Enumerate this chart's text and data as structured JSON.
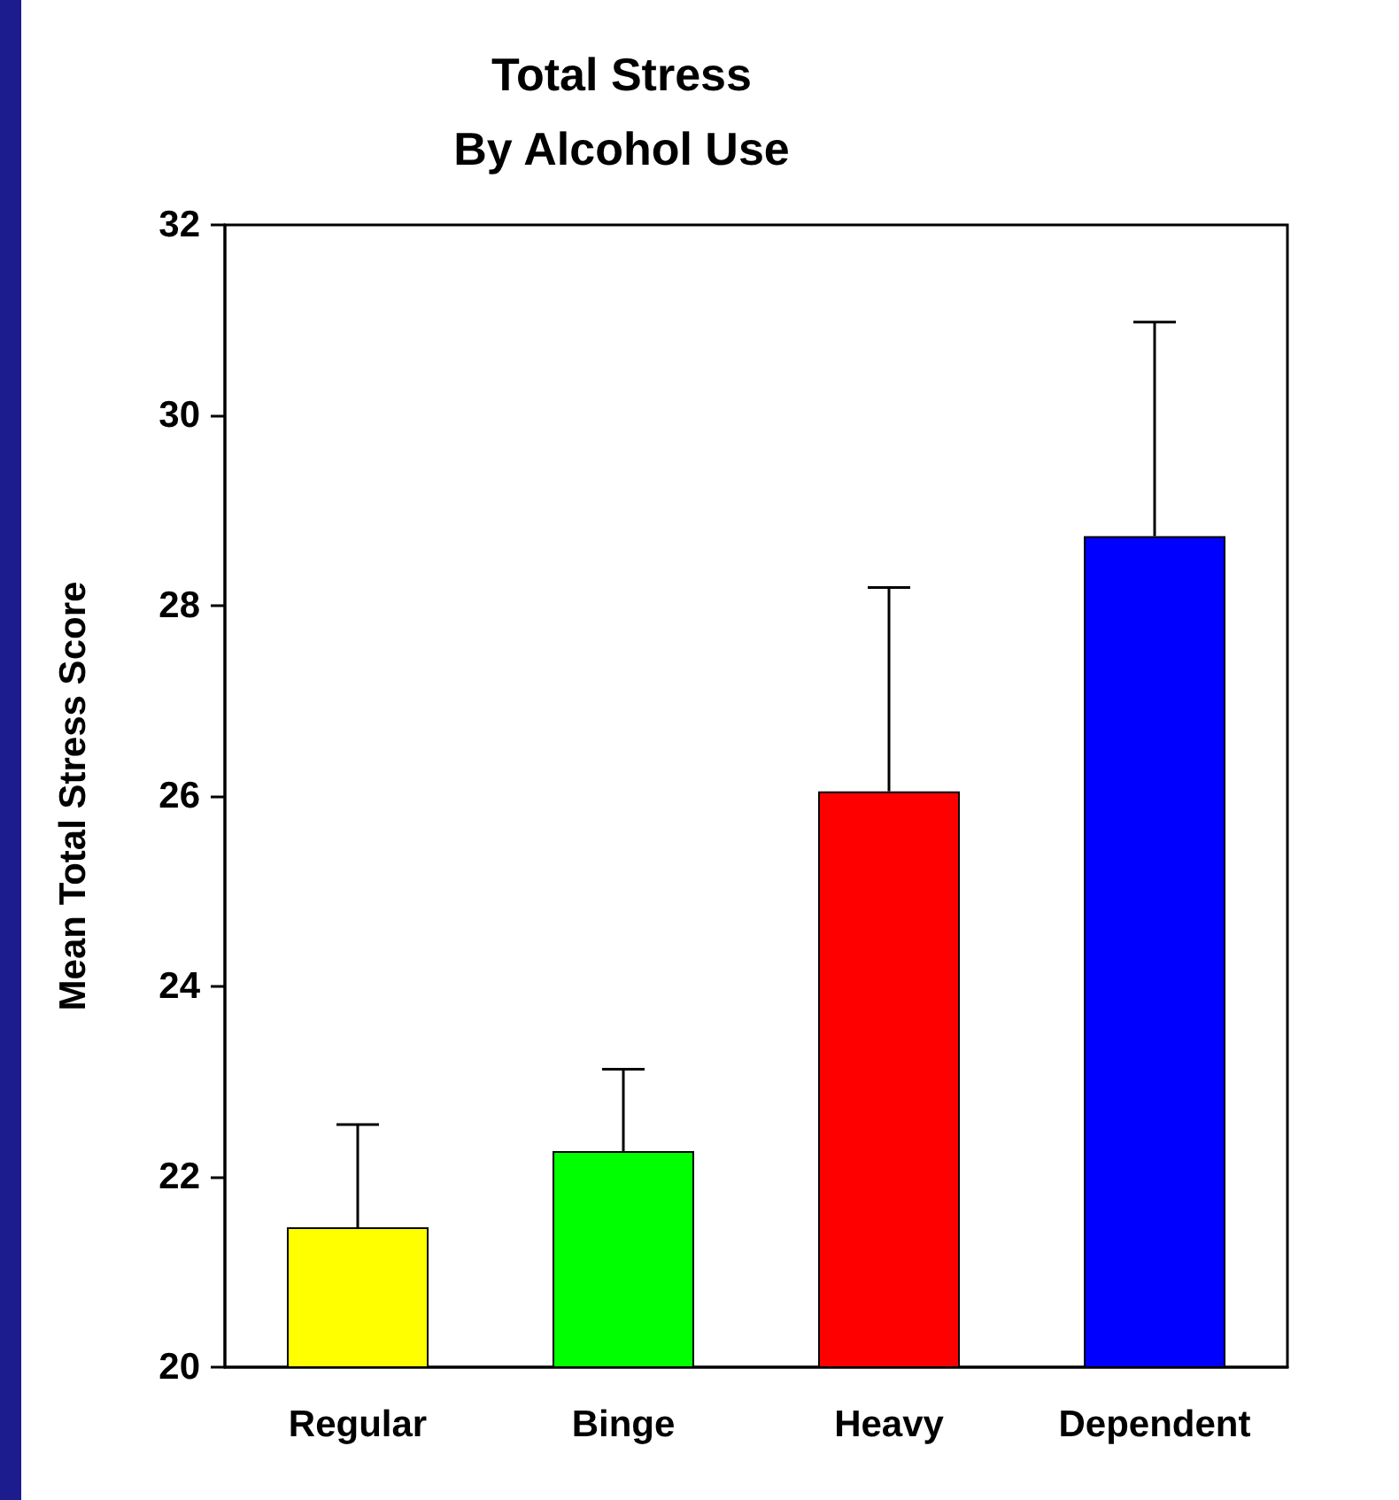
{
  "chart_data": {
    "type": "bar",
    "title": "Total Stress\nBy Alcohol Use",
    "ylabel": "Mean Total Stress Score",
    "categories": [
      "Regular",
      "Binge",
      "Heavy",
      "Dependent"
    ],
    "values": [
      21.47,
      22.27,
      26.05,
      28.73
    ],
    "colors": [
      "#ffff00",
      "#00ff00",
      "#ff0000",
      "#0000ff"
    ],
    "errors": [
      [
        21.47,
        22.55
      ],
      [
        22.27,
        23.13
      ],
      [
        26.05,
        28.19
      ],
      [
        28.73,
        30.98
      ]
    ],
    "ylim": [
      20,
      32
    ],
    "yticks": [
      20,
      22,
      24,
      26,
      28,
      30,
      32
    ],
    "grid": false
  }
}
